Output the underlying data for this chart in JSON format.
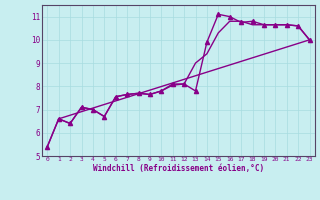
{
  "xlabel": "Windchill (Refroidissement éolien,°C)",
  "background_color": "#c8eef0",
  "line_color": "#880088",
  "grid_color": "#a8dce0",
  "spine_color": "#554466",
  "xlim": [
    -0.5,
    23.5
  ],
  "ylim": [
    5.0,
    11.5
  ],
  "yticks": [
    5,
    6,
    7,
    8,
    9,
    10,
    11
  ],
  "xticks": [
    0,
    1,
    2,
    3,
    4,
    5,
    6,
    7,
    8,
    9,
    10,
    11,
    12,
    13,
    14,
    15,
    16,
    17,
    18,
    19,
    20,
    21,
    22,
    23
  ],
  "curves": [
    {
      "x": [
        0,
        1,
        2,
        3,
        4,
        5,
        6,
        7,
        8,
        9,
        10,
        11,
        12,
        13,
        14,
        15,
        16,
        17,
        18,
        19,
        20,
        21,
        22,
        23
      ],
      "y": [
        5.4,
        6.6,
        6.4,
        7.1,
        7.0,
        6.7,
        7.55,
        7.65,
        7.7,
        7.65,
        7.8,
        8.1,
        8.1,
        7.8,
        9.9,
        11.1,
        11.0,
        10.75,
        10.8,
        10.65,
        10.65,
        10.65,
        10.6,
        10.0
      ],
      "marker": true
    },
    {
      "x": [
        0,
        1,
        2,
        3,
        4,
        5,
        6,
        7,
        8,
        9,
        10,
        11,
        12,
        13,
        14,
        15,
        16,
        17,
        18,
        19,
        20,
        21,
        22,
        23
      ],
      "y": [
        5.4,
        6.6,
        6.4,
        7.1,
        7.0,
        6.7,
        7.55,
        7.65,
        7.7,
        7.65,
        7.8,
        8.05,
        8.1,
        9.0,
        9.4,
        10.3,
        10.8,
        10.8,
        10.65,
        10.65,
        10.65,
        10.65,
        10.6,
        10.0
      ],
      "marker": false
    },
    {
      "x": [
        1,
        23
      ],
      "y": [
        6.6,
        10.0
      ],
      "marker": false
    }
  ],
  "linewidth": 1.0,
  "marker_symbol": "^",
  "marker_size": 3
}
